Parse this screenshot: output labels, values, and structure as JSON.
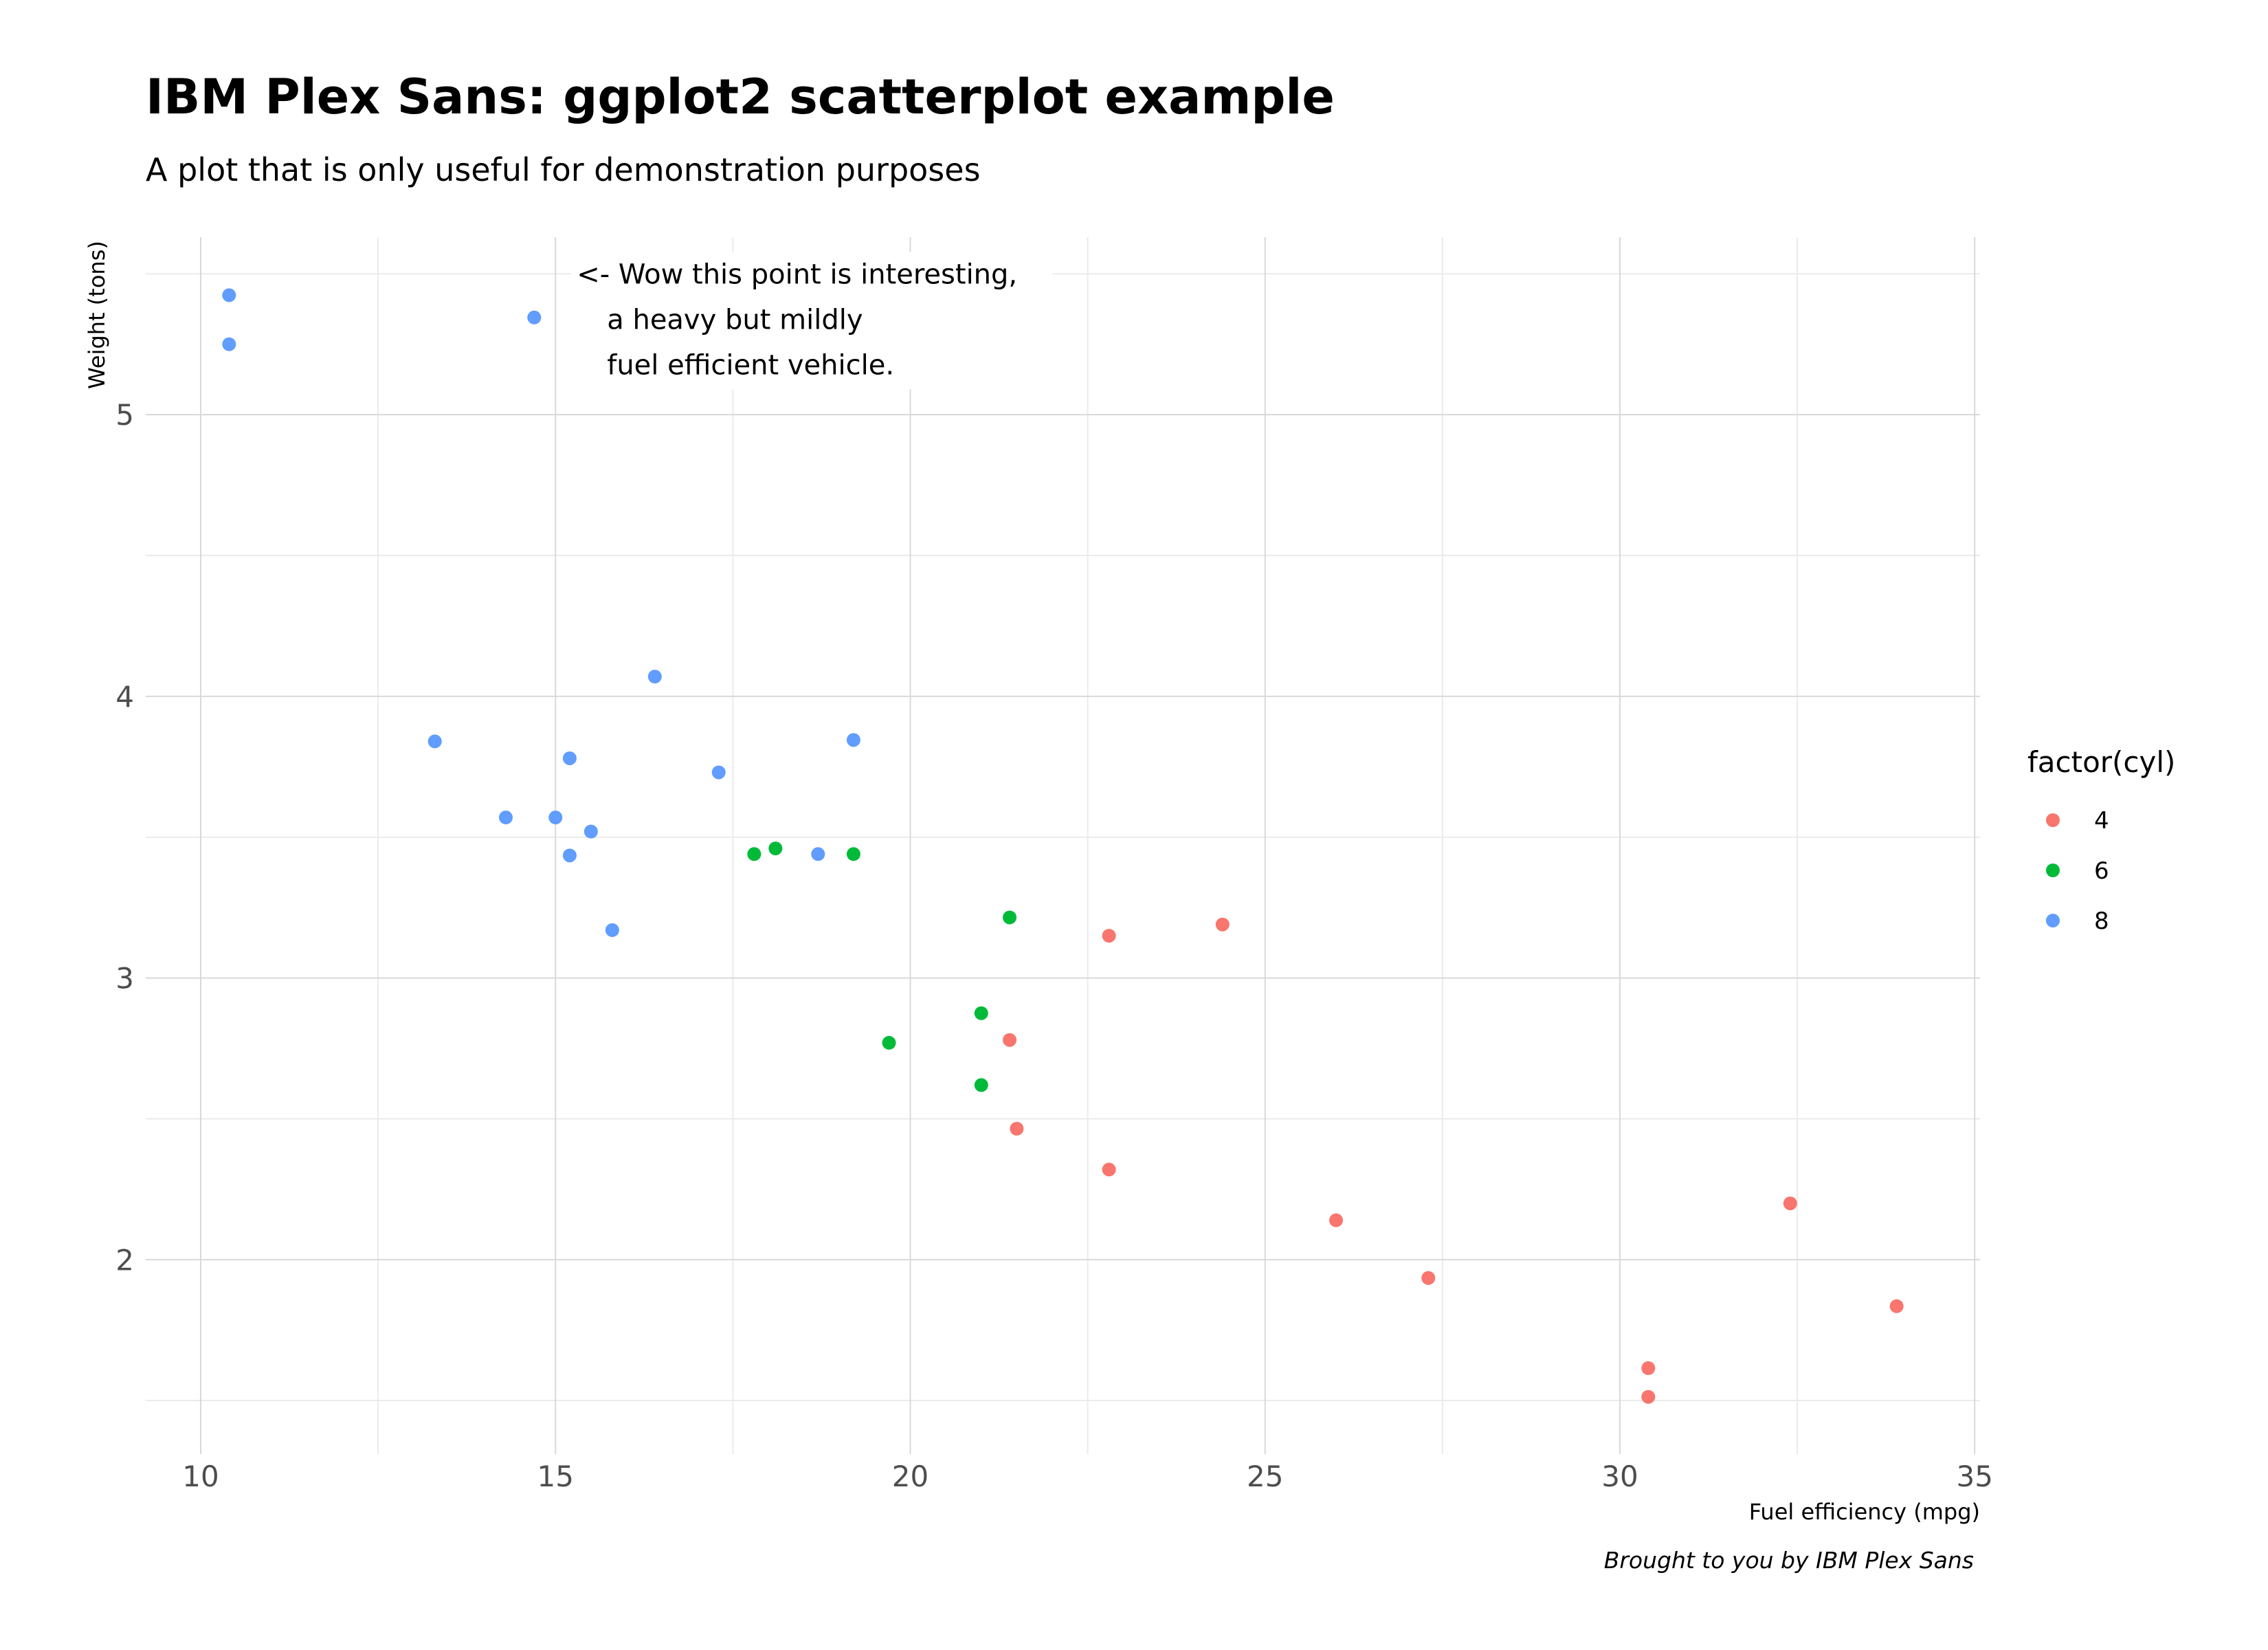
{
  "chart_data": {
    "type": "scatter",
    "title": "IBM Plex Sans: ggplot2 scatterplot example",
    "subtitle": "A plot that is only useful for demonstration purposes",
    "caption": "Brought to you by IBM Plex Sans",
    "xlabel": "Fuel efficiency (mpg)",
    "ylabel": "Weight (tons)",
    "xlim": [
      9.225,
      35.075
    ],
    "ylim": [
      1.31,
      5.63
    ],
    "x_major_ticks": [
      10,
      15,
      20,
      25,
      30,
      35
    ],
    "x_minor_ticks": [
      12.5,
      17.5,
      22.5,
      27.5,
      32.5
    ],
    "y_major_ticks": [
      2,
      3,
      4,
      5
    ],
    "y_minor_ticks": [
      1.5,
      2.5,
      3.5,
      4.5,
      5.5
    ],
    "x_tick_labels": [
      "10",
      "15",
      "20",
      "25",
      "30",
      "35"
    ],
    "y_tick_labels": [
      "2",
      "3",
      "4",
      "5"
    ],
    "grid": true,
    "legend": {
      "title": "factor(cyl)",
      "position": "right",
      "entries": [
        "4",
        "6",
        "8"
      ]
    },
    "annotation": {
      "lines": [
        "<- Wow this point is interesting,",
        "a heavy but mildly",
        "fuel efficient vehicle."
      ],
      "x": 15.3,
      "y": 5.5
    },
    "series": [
      {
        "name": "4",
        "color": "#F8766D",
        "points": [
          [
            22.8,
            2.32
          ],
          [
            24.4,
            3.19
          ],
          [
            22.8,
            3.15
          ],
          [
            32.4,
            2.2
          ],
          [
            30.4,
            1.615
          ],
          [
            33.9,
            1.835
          ],
          [
            21.5,
            2.465
          ],
          [
            27.3,
            1.935
          ],
          [
            26.0,
            2.14
          ],
          [
            30.4,
            1.513
          ],
          [
            21.4,
            2.78
          ]
        ]
      },
      {
        "name": "6",
        "color": "#00BA38",
        "points": [
          [
            21.0,
            2.62
          ],
          [
            21.0,
            2.875
          ],
          [
            21.4,
            3.215
          ],
          [
            18.1,
            3.46
          ],
          [
            19.2,
            3.44
          ],
          [
            17.8,
            3.44
          ],
          [
            19.7,
            2.77
          ]
        ]
      },
      {
        "name": "8",
        "color": "#619CFF",
        "points": [
          [
            18.7,
            3.44
          ],
          [
            14.3,
            3.57
          ],
          [
            16.4,
            4.07
          ],
          [
            17.3,
            3.73
          ],
          [
            15.2,
            3.78
          ],
          [
            10.4,
            5.25
          ],
          [
            10.4,
            5.424
          ],
          [
            14.7,
            5.345
          ],
          [
            15.5,
            3.52
          ],
          [
            15.2,
            3.435
          ],
          [
            13.3,
            3.84
          ],
          [
            19.2,
            3.845
          ],
          [
            15.8,
            3.17
          ],
          [
            15.0,
            3.57
          ]
        ]
      }
    ]
  }
}
